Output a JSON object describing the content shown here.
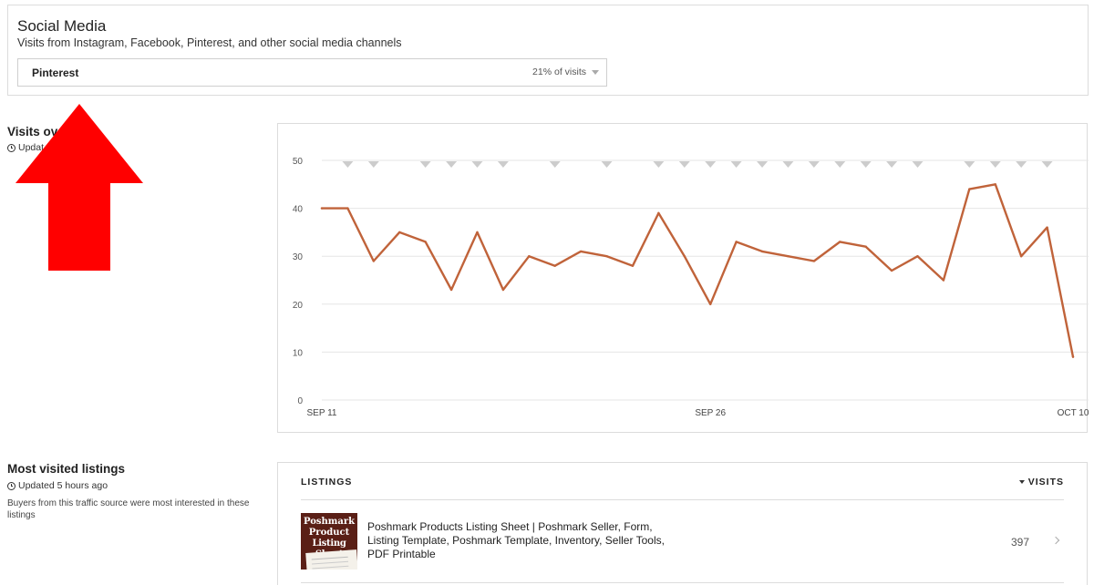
{
  "social": {
    "title": "Social Media",
    "description": "Visits from Instagram, Facebook, Pinterest, and other social media channels",
    "selected_source": "Pinterest",
    "selected_share": "21% of visits"
  },
  "visits_over_time": {
    "title_visible": "Visits ove",
    "updated_visible": "Updat"
  },
  "chart_data": {
    "type": "line",
    "x_tick_labels": [
      "SEP 11",
      "SEP 26",
      "OCT 10"
    ],
    "y_ticks": [
      0,
      10,
      20,
      30,
      40,
      50
    ],
    "ylim": [
      0,
      50
    ],
    "line_color": "#c0633a",
    "marker_color": "#cccccc",
    "values": [
      40,
      40,
      29,
      35,
      33,
      23,
      35,
      23,
      30,
      28,
      31,
      30,
      28,
      39,
      30,
      20,
      33,
      31,
      30,
      29,
      33,
      32,
      27,
      30,
      25,
      44,
      45,
      30,
      36,
      9
    ],
    "event_marker_indices": [
      1,
      2,
      4,
      5,
      6,
      7,
      9,
      11,
      13,
      14,
      15,
      16,
      17,
      18,
      19,
      20,
      21,
      22,
      23,
      25,
      26,
      27,
      28
    ]
  },
  "most_visited": {
    "title": "Most visited listings",
    "updated": "Updated 5 hours ago",
    "description": "Buyers from this traffic source were most interested in these listings",
    "col_listings": "LISTINGS",
    "col_visits": "VISITS",
    "listings": [
      {
        "title": "Poshmark Products Listing Sheet | Poshmark Seller, Form, Listing Template, Poshmark Template, Inventory, Seller Tools, PDF Printable",
        "visits": "397",
        "thumb_lines": [
          "Poshmark",
          "Product",
          "Listing Sheet"
        ]
      }
    ]
  },
  "colors": {
    "arrow": "#ff0000",
    "line": "#c0633a",
    "grid": "#e6e6e6"
  }
}
